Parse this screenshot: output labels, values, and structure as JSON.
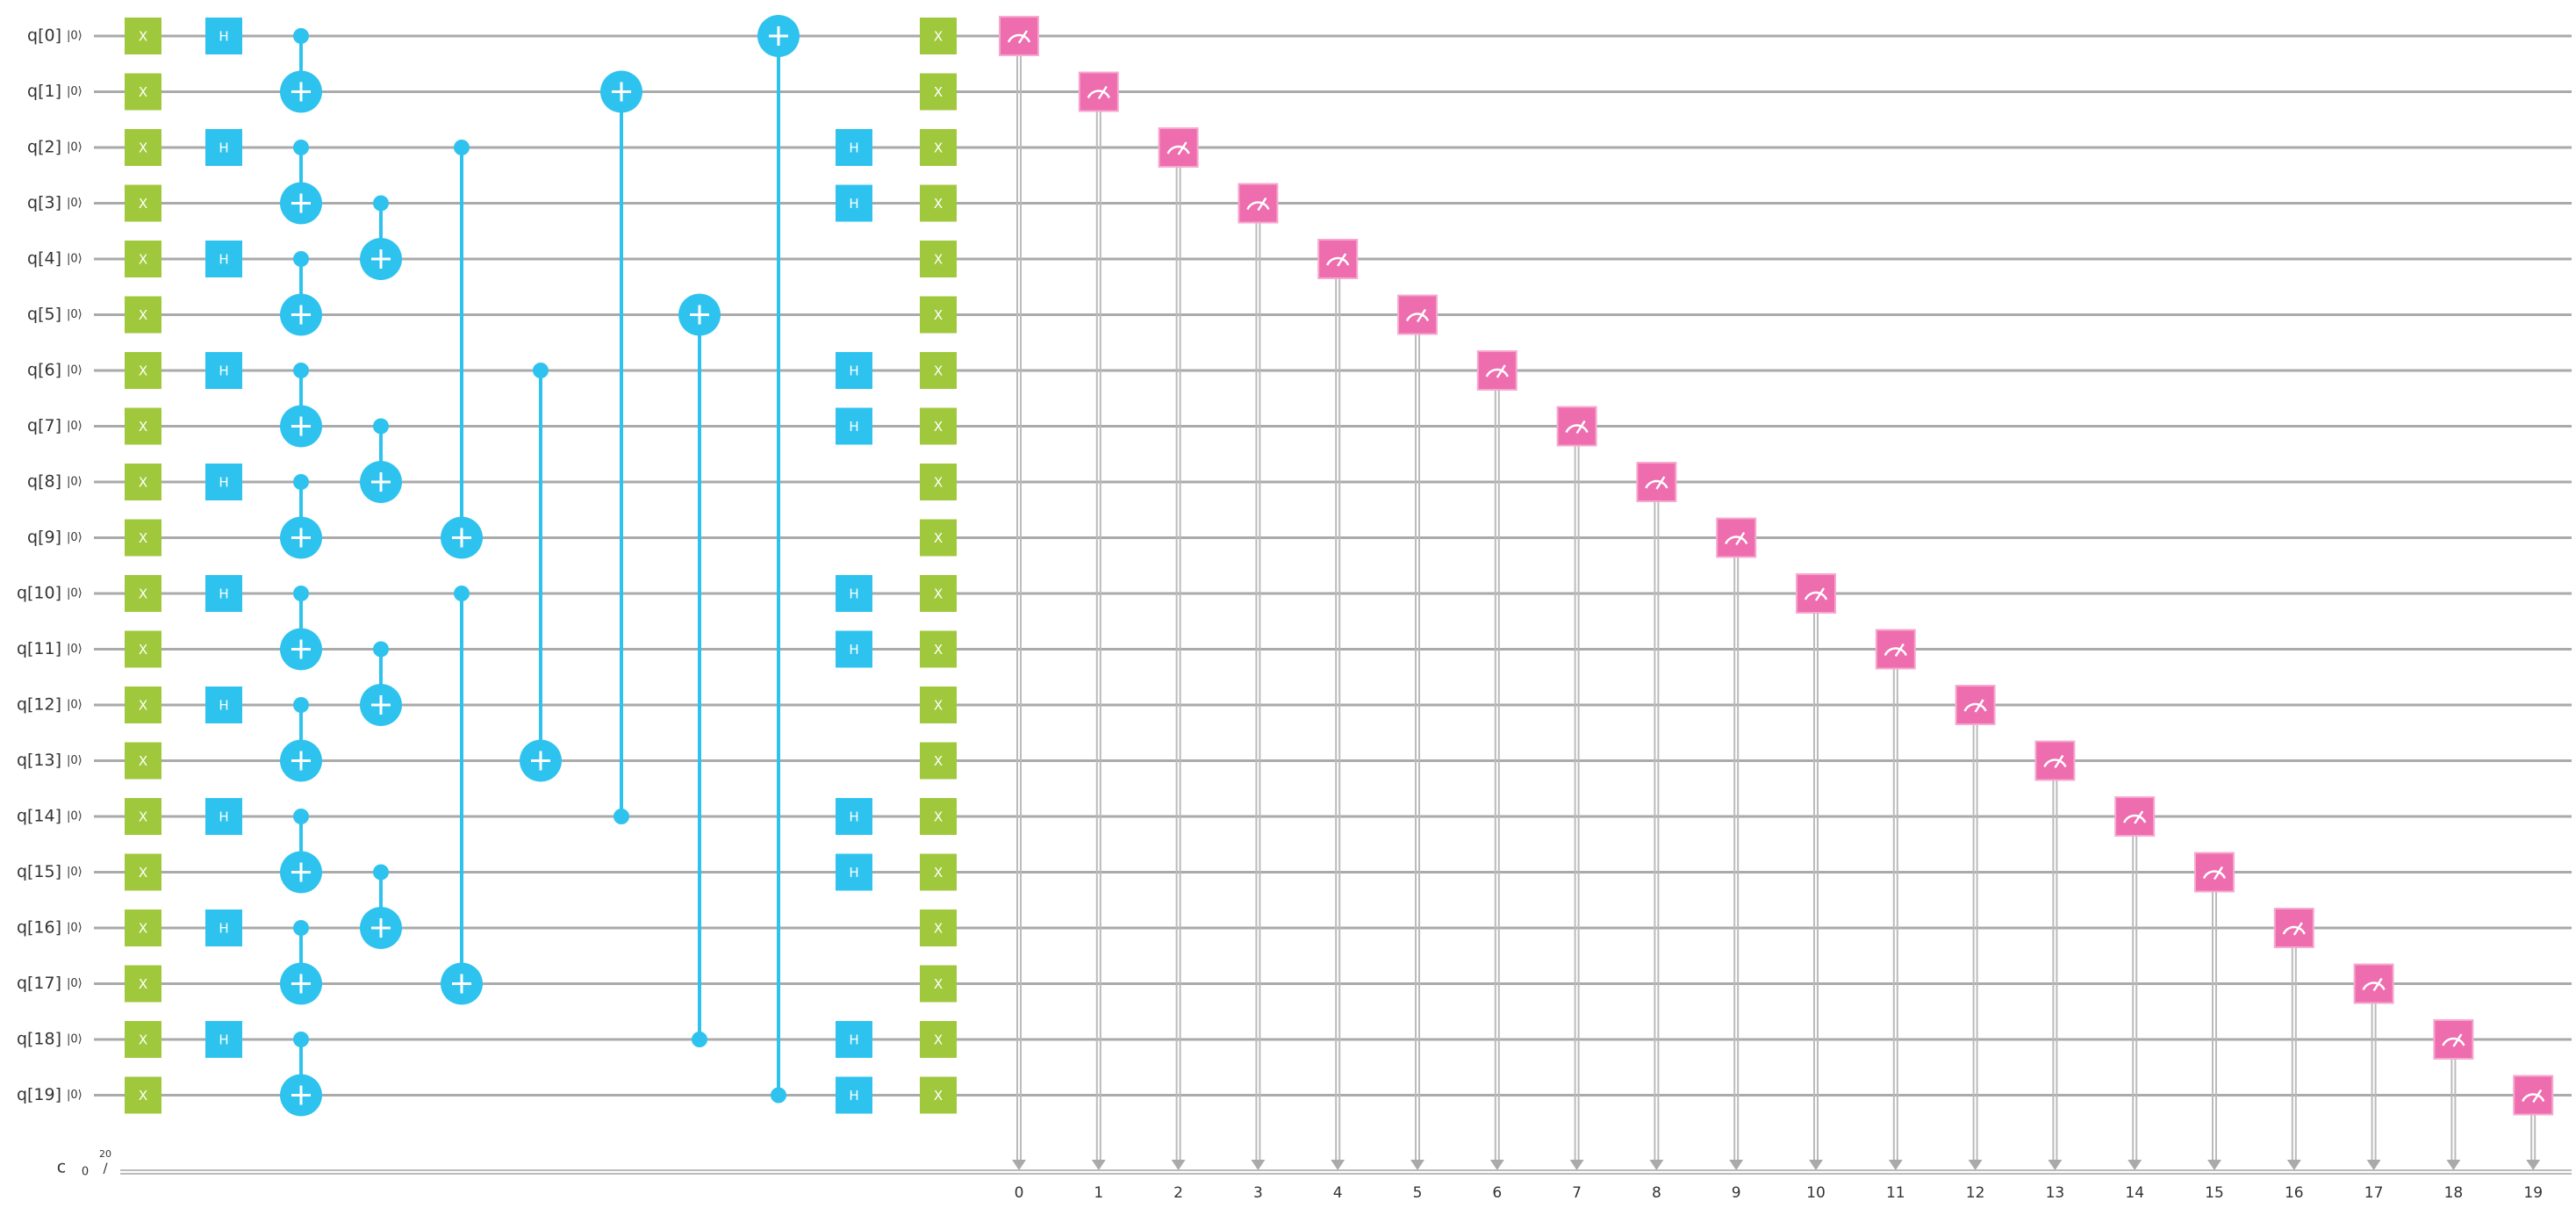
{
  "qubits": [
    {
      "label": "q[0]",
      "ket": "|0⟩"
    },
    {
      "label": "q[1]",
      "ket": "|0⟩"
    },
    {
      "label": "q[2]",
      "ket": "|0⟩"
    },
    {
      "label": "q[3]",
      "ket": "|0⟩"
    },
    {
      "label": "q[4]",
      "ket": "|0⟩"
    },
    {
      "label": "q[5]",
      "ket": "|0⟩"
    },
    {
      "label": "q[6]",
      "ket": "|0⟩"
    },
    {
      "label": "q[7]",
      "ket": "|0⟩"
    },
    {
      "label": "q[8]",
      "ket": "|0⟩"
    },
    {
      "label": "q[9]",
      "ket": "|0⟩"
    },
    {
      "label": "q[10]",
      "ket": "|0⟩"
    },
    {
      "label": "q[11]",
      "ket": "|0⟩"
    },
    {
      "label": "q[12]",
      "ket": "|0⟩"
    },
    {
      "label": "q[13]",
      "ket": "|0⟩"
    },
    {
      "label": "q[14]",
      "ket": "|0⟩"
    },
    {
      "label": "q[15]",
      "ket": "|0⟩"
    },
    {
      "label": "q[16]",
      "ket": "|0⟩"
    },
    {
      "label": "q[17]",
      "ket": "|0⟩"
    },
    {
      "label": "q[18]",
      "ket": "|0⟩"
    },
    {
      "label": "q[19]",
      "ket": "|0⟩"
    }
  ],
  "classical": {
    "label": "c",
    "index": "0",
    "width": "20",
    "slash": "/"
  },
  "moments": [
    [
      {
        "gate": "X",
        "target": 0
      },
      {
        "gate": "X",
        "target": 1
      },
      {
        "gate": "X",
        "target": 2
      },
      {
        "gate": "X",
        "target": 3
      },
      {
        "gate": "X",
        "target": 4
      },
      {
        "gate": "X",
        "target": 5
      },
      {
        "gate": "X",
        "target": 6
      },
      {
        "gate": "X",
        "target": 7
      },
      {
        "gate": "X",
        "target": 8
      },
      {
        "gate": "X",
        "target": 9
      },
      {
        "gate": "X",
        "target": 10
      },
      {
        "gate": "X",
        "target": 11
      },
      {
        "gate": "X",
        "target": 12
      },
      {
        "gate": "X",
        "target": 13
      },
      {
        "gate": "X",
        "target": 14
      },
      {
        "gate": "X",
        "target": 15
      },
      {
        "gate": "X",
        "target": 16
      },
      {
        "gate": "X",
        "target": 17
      },
      {
        "gate": "X",
        "target": 18
      },
      {
        "gate": "X",
        "target": 19
      }
    ],
    [
      {
        "gate": "H",
        "target": 0
      },
      {
        "gate": "H",
        "target": 2
      },
      {
        "gate": "H",
        "target": 4
      },
      {
        "gate": "H",
        "target": 6
      },
      {
        "gate": "H",
        "target": 8
      },
      {
        "gate": "H",
        "target": 10
      },
      {
        "gate": "H",
        "target": 12
      },
      {
        "gate": "H",
        "target": 14
      },
      {
        "gate": "H",
        "target": 16
      },
      {
        "gate": "H",
        "target": 18
      }
    ],
    [
      {
        "gate": "CNOT",
        "control": 0,
        "target": 1
      },
      {
        "gate": "CNOT",
        "control": 2,
        "target": 3
      },
      {
        "gate": "CNOT",
        "control": 4,
        "target": 5
      },
      {
        "gate": "CNOT",
        "control": 6,
        "target": 7
      },
      {
        "gate": "CNOT",
        "control": 8,
        "target": 9
      },
      {
        "gate": "CNOT",
        "control": 10,
        "target": 11
      },
      {
        "gate": "CNOT",
        "control": 12,
        "target": 13
      },
      {
        "gate": "CNOT",
        "control": 14,
        "target": 15
      },
      {
        "gate": "CNOT",
        "control": 16,
        "target": 17
      },
      {
        "gate": "CNOT",
        "control": 18,
        "target": 19
      }
    ],
    [
      {
        "gate": "CNOT",
        "control": 3,
        "target": 4
      },
      {
        "gate": "CNOT",
        "control": 7,
        "target": 8
      },
      {
        "gate": "CNOT",
        "control": 11,
        "target": 12
      },
      {
        "gate": "CNOT",
        "control": 15,
        "target": 16
      }
    ],
    [
      {
        "gate": "CNOT",
        "control": 2,
        "target": 9
      },
      {
        "gate": "CNOT",
        "control": 10,
        "target": 17
      }
    ],
    [
      {
        "gate": "CNOT",
        "control": 6,
        "target": 13
      }
    ],
    [
      {
        "gate": "CNOT",
        "control": 14,
        "target": 1
      }
    ],
    [
      {
        "gate": "CNOT",
        "control": 18,
        "target": 5
      }
    ],
    [
      {
        "gate": "CNOT",
        "control": 19,
        "target": 0
      }
    ],
    [
      {
        "gate": "H",
        "target": 2
      },
      {
        "gate": "H",
        "target": 3
      },
      {
        "gate": "H",
        "target": 6
      },
      {
        "gate": "H",
        "target": 7
      },
      {
        "gate": "H",
        "target": 10
      },
      {
        "gate": "H",
        "target": 11
      },
      {
        "gate": "H",
        "target": 14
      },
      {
        "gate": "H",
        "target": 15
      },
      {
        "gate": "H",
        "target": 18
      },
      {
        "gate": "H",
        "target": 19
      }
    ],
    [
      {
        "gate": "X",
        "target": 0
      },
      {
        "gate": "X",
        "target": 1
      },
      {
        "gate": "X",
        "target": 2
      },
      {
        "gate": "X",
        "target": 3
      },
      {
        "gate": "X",
        "target": 4
      },
      {
        "gate": "X",
        "target": 5
      },
      {
        "gate": "X",
        "target": 6
      },
      {
        "gate": "X",
        "target": 7
      },
      {
        "gate": "X",
        "target": 8
      },
      {
        "gate": "X",
        "target": 9
      },
      {
        "gate": "X",
        "target": 10
      },
      {
        "gate": "X",
        "target": 11
      },
      {
        "gate": "X",
        "target": 12
      },
      {
        "gate": "X",
        "target": 13
      },
      {
        "gate": "X",
        "target": 14
      },
      {
        "gate": "X",
        "target": 15
      },
      {
        "gate": "X",
        "target": 16
      },
      {
        "gate": "X",
        "target": 17
      },
      {
        "gate": "X",
        "target": 18
      },
      {
        "gate": "X",
        "target": 19
      }
    ],
    [
      {
        "gate": "measure",
        "target": 0,
        "bit": 0
      }
    ],
    [
      {
        "gate": "measure",
        "target": 1,
        "bit": 1
      }
    ],
    [
      {
        "gate": "measure",
        "target": 2,
        "bit": 2
      }
    ],
    [
      {
        "gate": "measure",
        "target": 3,
        "bit": 3
      }
    ],
    [
      {
        "gate": "measure",
        "target": 4,
        "bit": 4
      }
    ],
    [
      {
        "gate": "measure",
        "target": 5,
        "bit": 5
      }
    ],
    [
      {
        "gate": "measure",
        "target": 6,
        "bit": 6
      }
    ],
    [
      {
        "gate": "measure",
        "target": 7,
        "bit": 7
      }
    ],
    [
      {
        "gate": "measure",
        "target": 8,
        "bit": 8
      }
    ],
    [
      {
        "gate": "measure",
        "target": 9,
        "bit": 9
      }
    ],
    [
      {
        "gate": "measure",
        "target": 10,
        "bit": 10
      }
    ],
    [
      {
        "gate": "measure",
        "target": 11,
        "bit": 11
      }
    ],
    [
      {
        "gate": "measure",
        "target": 12,
        "bit": 12
      }
    ],
    [
      {
        "gate": "measure",
        "target": 13,
        "bit": 13
      }
    ],
    [
      {
        "gate": "measure",
        "target": 14,
        "bit": 14
      }
    ],
    [
      {
        "gate": "measure",
        "target": 15,
        "bit": 15
      }
    ],
    [
      {
        "gate": "measure",
        "target": 16,
        "bit": 16
      }
    ],
    [
      {
        "gate": "measure",
        "target": 17,
        "bit": 17
      }
    ],
    [
      {
        "gate": "measure",
        "target": 18,
        "bit": 18
      }
    ],
    [
      {
        "gate": "measure",
        "target": 19,
        "bit": 19
      }
    ]
  ]
}
